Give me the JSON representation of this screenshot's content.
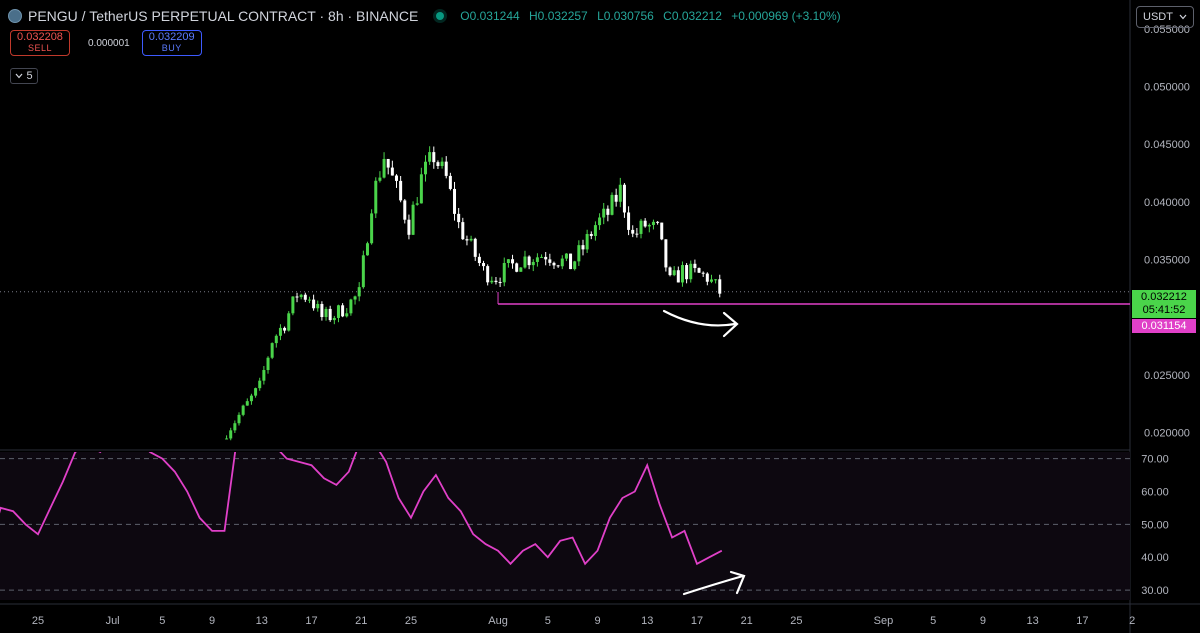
{
  "header": {
    "title": "PENGU / TetherUS PERPETUAL CONTRACT · 8h · BINANCE",
    "ohlc": {
      "open": "O0.031244",
      "high": "H0.032257",
      "low": "L0.030756",
      "close": "C0.032212",
      "change": "+0.000969 (+3.10%)"
    }
  },
  "trade": {
    "sell_price": "0.032208",
    "sell_label": "SELL",
    "spread": "0.000001",
    "buy_price": "0.032209",
    "buy_label": "BUY"
  },
  "indicator_toggle": "5",
  "currency": "USDT",
  "price_labels": {
    "current_price": "0.032212",
    "countdown": "05:41:52",
    "level_price": "0.031154"
  },
  "colors": {
    "up": "#4ad44a",
    "down": "#ffffff",
    "rsi": "#e040c8",
    "level": "#e040c8"
  },
  "chart_data": [
    {
      "type": "candlestick",
      "ylim": [
        0.0185,
        0.0575
      ],
      "y_ticks": [
        "0.020000",
        "0.025000",
        "0.035000",
        "0.040000",
        "0.045000",
        "0.050000",
        "0.055000"
      ],
      "x_ticks": [
        "25",
        "Jul",
        "5",
        "9",
        "13",
        "17",
        "21",
        "25",
        "Aug",
        "5",
        "9",
        "13",
        "17",
        "21",
        "25",
        "Sep",
        "5",
        "9",
        "13",
        "17",
        "2"
      ],
      "x_tick_dates": [
        "06-25",
        "07-01",
        "07-05",
        "07-09",
        "07-13",
        "07-17",
        "07-21",
        "07-25",
        "08-01",
        "08-05",
        "08-09",
        "08-13",
        "08-17",
        "08-21",
        "08-25",
        "09-01",
        "09-05",
        "09-09",
        "09-13",
        "09-17",
        "09-21"
      ],
      "price_path": [
        [
          "07-10",
          0.0195
        ],
        [
          "07-12",
          0.0225
        ],
        [
          "07-13",
          0.024
        ],
        [
          "07-14",
          0.028
        ],
        [
          "07-15",
          0.0295
        ],
        [
          "07-16",
          0.032
        ],
        [
          "07-17",
          0.0318
        ],
        [
          "07-18",
          0.03
        ],
        [
          "07-19",
          0.0302
        ],
        [
          "07-20",
          0.031
        ],
        [
          "07-21",
          0.032
        ],
        [
          "07-22",
          0.04
        ],
        [
          "07-23",
          0.044
        ],
        [
          "07-24",
          0.041
        ],
        [
          "07-25",
          0.038
        ],
        [
          "07-26",
          0.042
        ],
        [
          "07-27",
          0.044
        ],
        [
          "07-28",
          0.042
        ],
        [
          "07-29",
          0.038
        ],
        [
          "07-30",
          0.036
        ],
        [
          "07-31",
          0.034
        ],
        [
          "08-01",
          0.0335
        ],
        [
          "08-03",
          0.035
        ],
        [
          "08-05",
          0.0355
        ],
        [
          "08-07",
          0.0345
        ],
        [
          "08-08",
          0.036
        ],
        [
          "08-09",
          0.038
        ],
        [
          "08-10",
          0.039
        ],
        [
          "08-11",
          0.041
        ],
        [
          "08-12",
          0.037
        ],
        [
          "08-13",
          0.038
        ],
        [
          "08-14",
          0.0375
        ],
        [
          "08-15",
          0.033
        ],
        [
          "08-16",
          0.034
        ],
        [
          "08-17",
          0.0338
        ],
        [
          "08-18",
          0.0335
        ],
        [
          "08-19",
          0.0322
        ]
      ],
      "horizontal_level": {
        "price": 0.031154,
        "from": "08-01"
      },
      "last_price": 0.032212
    },
    {
      "type": "line",
      "name": "RSI",
      "ylim": [
        27,
        72
      ],
      "y_ticks": [
        "30.00",
        "40.00",
        "50.00",
        "60.00",
        "70.00"
      ],
      "levels": [
        30,
        50,
        70
      ],
      "x": [
        "06-20",
        "06-21",
        "06-22",
        "06-23",
        "06-24",
        "06-25",
        "06-26",
        "06-27",
        "06-28",
        "06-29",
        "06-30",
        "07-01",
        "07-02",
        "07-03",
        "07-04",
        "07-05",
        "07-06",
        "07-07",
        "07-08",
        "07-09",
        "07-10",
        "07-11",
        "07-12",
        "07-13",
        "07-14",
        "07-15",
        "07-16",
        "07-17",
        "07-18",
        "07-19",
        "07-20",
        "07-21",
        "07-22",
        "07-23",
        "07-24",
        "07-25",
        "07-26",
        "07-27",
        "07-28",
        "07-29",
        "07-30",
        "07-31",
        "08-01",
        "08-02",
        "08-03",
        "08-04",
        "08-05",
        "08-06",
        "08-07",
        "08-08",
        "08-09",
        "08-10",
        "08-11",
        "08-12",
        "08-13",
        "08-14",
        "08-15",
        "08-16",
        "08-17",
        "08-18",
        "08-19"
      ],
      "values": [
        30,
        42,
        55,
        54,
        50,
        47,
        55,
        63,
        72,
        74,
        72,
        76,
        75,
        76,
        72,
        70,
        66,
        60,
        52,
        48,
        48,
        76,
        77,
        75,
        74,
        70,
        69,
        68,
        64,
        62,
        66,
        76,
        75,
        69,
        58,
        52,
        60,
        65,
        58,
        54,
        47,
        44,
        42,
        38,
        42,
        44,
        40,
        45,
        46,
        38,
        42,
        52,
        58,
        60,
        68,
        56,
        46,
        48,
        38,
        40,
        42
      ]
    }
  ]
}
